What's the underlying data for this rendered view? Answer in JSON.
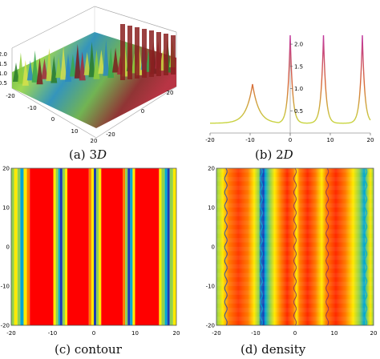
{
  "figure": {
    "captions": [
      {
        "id": "a",
        "label": "(a)",
        "text": "3",
        "italic": "D"
      },
      {
        "id": "b",
        "label": "(b)",
        "text": "2",
        "italic": "D"
      },
      {
        "id": "c",
        "label": "(c)",
        "text": "contour",
        "italic": ""
      },
      {
        "id": "d",
        "label": "(d)",
        "text": "density",
        "italic": ""
      }
    ],
    "panel_a": {
      "z_ticks": [
        "0.5",
        "1.0",
        "1.5",
        "2.0"
      ],
      "x_ticks": [
        "-20",
        "-10",
        "0",
        "10",
        "20"
      ],
      "y_ticks": [
        "-20",
        "0",
        "20"
      ]
    },
    "panel_b": {
      "x_ticks": [
        "-20",
        "-10",
        "0",
        "10",
        "20"
      ],
      "y_ticks": [
        "0.5",
        "1.0",
        "1.5",
        "2.0"
      ],
      "line_color_top": "#c0379e",
      "line_color_mid": "#d86a3a",
      "line_color_low": "#c8d640"
    },
    "panel_c": {
      "x_ticks": [
        "-20",
        "-10",
        "0",
        "10",
        "20"
      ],
      "y_ticks": [
        "20",
        "10",
        "0",
        "-10",
        "-20"
      ]
    },
    "panel_d": {
      "x_ticks": [
        "-20",
        "-10",
        "0",
        "10",
        "20"
      ],
      "y_ticks": [
        "20",
        "10",
        "0",
        "-10",
        "-20"
      ]
    }
  },
  "chart_data": [
    {
      "type": "line",
      "title": "",
      "xlabel": "",
      "ylabel": "",
      "xlim": [
        -20,
        20
      ],
      "ylim": [
        0,
        2.2
      ],
      "peaks_x": [
        -9.4,
        0,
        8.3,
        18
      ],
      "peak_heights": [
        1.1,
        2.2,
        2.2,
        2.2
      ],
      "minima_x": [
        -15,
        -4.5,
        4.3,
        13.2
      ],
      "minima_y": [
        0.22,
        0.22,
        0.22,
        0.22
      ]
    },
    {
      "type": "heatmap",
      "title": "",
      "xlim": [
        -20,
        20
      ],
      "ylim": [
        -20,
        20
      ],
      "colors": [
        "#8fd14f",
        "#ffe900",
        "#ff7a00",
        "#ff0000",
        "#00a7d6",
        "#1c3cb4"
      ]
    }
  ]
}
